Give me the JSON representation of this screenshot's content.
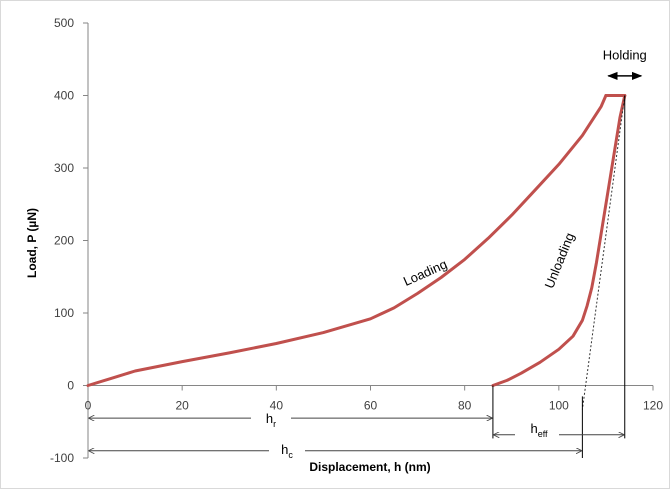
{
  "chart_data": {
    "type": "line",
    "title": "",
    "xlabel": "Displacement, h (nm)",
    "ylabel": "Load, P (µN)",
    "xlim": [
      0,
      120
    ],
    "ylim": [
      -100,
      500
    ],
    "x_ticks": [
      0,
      20,
      40,
      60,
      80,
      100,
      120
    ],
    "y_ticks": [
      -100,
      0,
      100,
      200,
      300,
      400,
      500
    ],
    "grid": false,
    "legend": "none",
    "series_color": "#c0504d",
    "series": [
      {
        "segment": "loading",
        "points": [
          [
            0,
            0
          ],
          [
            5,
            10
          ],
          [
            10,
            20
          ],
          [
            20,
            33
          ],
          [
            30,
            45
          ],
          [
            40,
            58
          ],
          [
            50,
            73
          ],
          [
            60,
            92
          ],
          [
            65,
            107
          ],
          [
            70,
            127
          ],
          [
            75,
            149
          ],
          [
            80,
            174
          ],
          [
            85,
            203
          ],
          [
            90,
            235
          ],
          [
            95,
            270
          ],
          [
            100,
            305
          ],
          [
            105,
            345
          ],
          [
            109,
            385
          ],
          [
            110,
            400
          ]
        ]
      },
      {
        "segment": "holding",
        "points": [
          [
            110,
            400
          ],
          [
            114,
            400
          ]
        ]
      },
      {
        "segment": "unloading",
        "points": [
          [
            114,
            400
          ],
          [
            113,
            370
          ],
          [
            112,
            330
          ],
          [
            111,
            290
          ],
          [
            110,
            250
          ],
          [
            109,
            210
          ],
          [
            108,
            170
          ],
          [
            107,
            135
          ],
          [
            106,
            110
          ],
          [
            105,
            90
          ],
          [
            103,
            68
          ],
          [
            100,
            50
          ],
          [
            96,
            32
          ],
          [
            92,
            17
          ],
          [
            89,
            7
          ],
          [
            86,
            0
          ]
        ]
      }
    ],
    "tangent_line": [
      [
        114,
        400
      ],
      [
        105,
        0
      ]
    ],
    "annotations": {
      "loading": "Loading",
      "unloading": "Unloading",
      "holding": "Holding",
      "h_r": {
        "base": "h",
        "sub": "r",
        "from": 0,
        "to": 86
      },
      "h_eff": {
        "base": "h",
        "sub": "eff",
        "from": 86,
        "to": 114
      },
      "h_c": {
        "base": "h",
        "sub": "c",
        "from": 0,
        "to": 105
      }
    }
  }
}
